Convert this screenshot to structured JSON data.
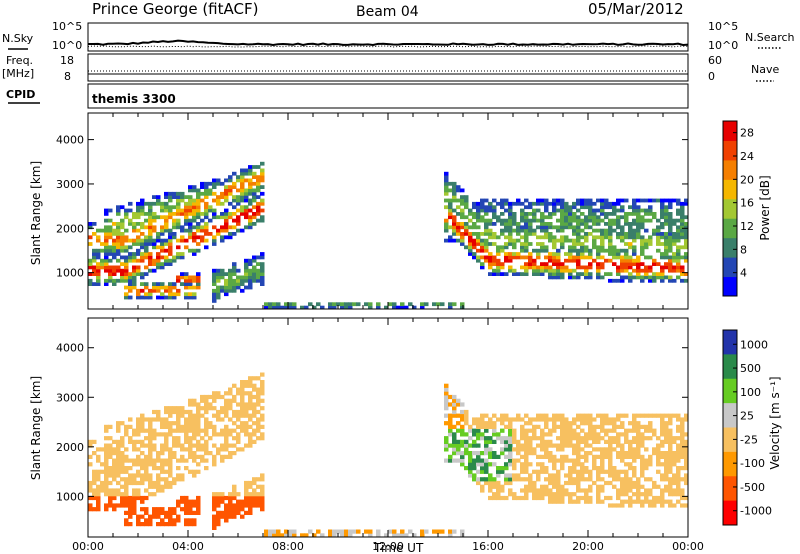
{
  "header": {
    "station": "Prince George (fitACF)",
    "beam": "Beam 04",
    "date": "05/Mar/2012"
  },
  "noise_panel": {
    "left_label": "N.Sky",
    "right_label": "N.Search",
    "left_ticks": [
      "10^5",
      "10^0"
    ],
    "right_ticks": [
      "10^5",
      "10^0"
    ]
  },
  "freq_panel": {
    "left_label_line1": "Freq.",
    "left_label_line2": "[MHz]",
    "right_label": "Nave",
    "left_ticks": [
      "18",
      "8"
    ],
    "right_ticks": [
      "60",
      "0"
    ]
  },
  "cpid_panel": {
    "label": "CPID",
    "program": "themis 3300"
  },
  "colors": {
    "power_scale": [
      "#0000ff",
      "#2346b4",
      "#3a7f6a",
      "#5aa844",
      "#a3c832",
      "#f5b700",
      "#f57f00",
      "#f04000",
      "#e60000"
    ],
    "velocity_scale": [
      "#ff0000",
      "#ff5500",
      "#ff9900",
      "#f7c060",
      "#c8c8c8",
      "#66cc22",
      "#2a8a4a",
      "#2233aa"
    ]
  },
  "chart_data": [
    {
      "type": "heatmap",
      "name": "power",
      "ylabel": "Slant Range [km]",
      "xlabel": "Time UT",
      "xlim": [
        0,
        24
      ],
      "ylim": [
        180,
        4600
      ],
      "yticks": [
        "1000",
        "2000",
        "3000",
        "4000"
      ],
      "xticks": [
        "00:00",
        "04:00",
        "08:00",
        "12:00",
        "16:00",
        "20:00",
        "00:00"
      ],
      "colorbar": {
        "label": "Power [dB]",
        "ticks": [
          "28",
          "24",
          "20",
          "16",
          "12",
          "8",
          "4"
        ],
        "range": [
          0,
          30
        ]
      }
    },
    {
      "type": "heatmap",
      "name": "velocity",
      "ylabel": "Slant Range [km]",
      "xlabel": "Time UT",
      "xlim": [
        0,
        24
      ],
      "ylim": [
        180,
        4600
      ],
      "yticks": [
        "1000",
        "2000",
        "3000",
        "4000"
      ],
      "xticks": [
        "00:00",
        "04:00",
        "08:00",
        "12:00",
        "16:00",
        "20:00",
        "00:00"
      ],
      "colorbar": {
        "label": "Velocity [m s⁻¹]",
        "ticks": [
          "1000",
          "500",
          "100",
          "25",
          "-25",
          "-100",
          "-500",
          "-1000"
        ],
        "range": [
          -1000,
          1000
        ]
      }
    }
  ]
}
